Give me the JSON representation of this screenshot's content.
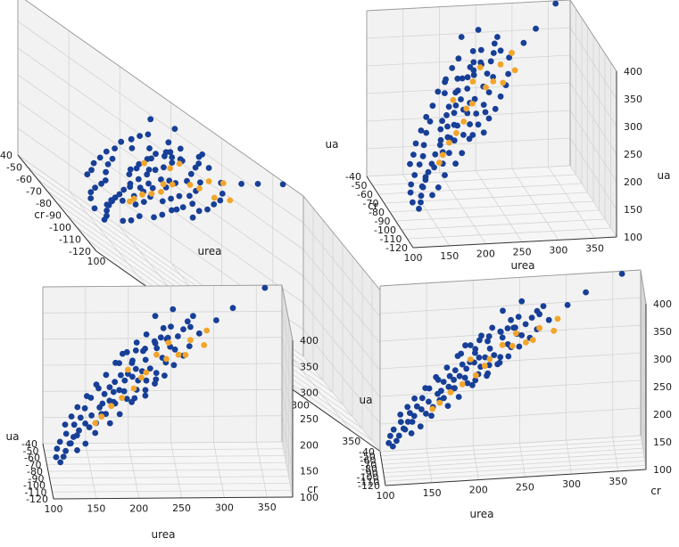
{
  "colors": {
    "series_a": "#173f97",
    "series_b": "#f2a52a",
    "grid": "#d4d4d4",
    "pane_edge": "#9a9a9a",
    "text": "#1a1a1a"
  },
  "chart_data": [
    {
      "type": "scatter",
      "view": "elevation-30-azimuth-30",
      "xlabel": "urea",
      "ylabel": "cr",
      "zlabel": "ua",
      "xlim": [
        100,
        380
      ],
      "ylim": [
        -120,
        -40
      ],
      "zlim": [
        100,
        400
      ],
      "x_ticks": [
        "100",
        "150",
        "200",
        "250",
        "300",
        "350"
      ],
      "y_ticks": [
        "-120",
        "-110",
        "-100",
        "-90",
        "-80",
        "-70",
        "-60",
        "-50",
        "-40"
      ],
      "z_ticks": [
        "100",
        "150",
        "200",
        "250",
        "300",
        "350",
        "400"
      ]
    },
    {
      "type": "scatter",
      "view": "elevation-25-azimuth-10",
      "xlabel": "urea",
      "ylabel": "cr",
      "zlabel": "ua",
      "xlim": [
        100,
        380
      ],
      "ylim": [
        -120,
        -40
      ],
      "zlim": [
        100,
        400
      ],
      "x_ticks": [
        "100",
        "150",
        "200",
        "250",
        "300",
        "350"
      ],
      "y_ticks": [
        "-120",
        "-110",
        "-100",
        "-90",
        "-80",
        "-70",
        "-60",
        "-50",
        "-40"
      ],
      "z_ticks": [
        "100",
        "150",
        "200",
        "250",
        "300",
        "350",
        "400"
      ]
    },
    {
      "type": "scatter",
      "view": "elevation-10-azimuth-15",
      "xlabel": "urea",
      "ylabel": "cr",
      "zlabel": "ua",
      "xlim": [
        100,
        380
      ],
      "ylim": [
        -120,
        -40
      ],
      "zlim": [
        100,
        400
      ],
      "x_ticks": [
        "100",
        "150",
        "200",
        "250",
        "300",
        "350"
      ],
      "y_ticks": [
        "-120",
        "-110",
        "-100",
        "-90",
        "-80",
        "-70",
        "-60",
        "-50",
        "-40"
      ],
      "z_ticks": [
        "100",
        "150",
        "200",
        "250",
        "300",
        "350",
        "400"
      ]
    },
    {
      "type": "scatter",
      "view": "elevation-5-azimuth-5",
      "xlabel": "urea",
      "ylabel": "cr",
      "zlabel": "ua",
      "xlim": [
        100,
        380
      ],
      "ylim": [
        -120,
        -40
      ],
      "zlim": [
        100,
        400
      ],
      "x_ticks": [
        "100",
        "150",
        "200",
        "250",
        "300",
        "350"
      ],
      "y_ticks": [
        "-120",
        "-110",
        "-100",
        "-90",
        "-80",
        "-70",
        "-60",
        "-50",
        "-40"
      ],
      "z_ticks": [
        "100",
        "150",
        "200",
        "250",
        "300",
        "350",
        "400"
      ]
    }
  ],
  "points": {
    "series_a": [
      [
        232,
        -38,
        340
      ],
      [
        252,
        -42,
        358
      ],
      [
        240,
        -48,
        330
      ],
      [
        248,
        -52,
        338
      ],
      [
        270,
        -58,
        345
      ],
      [
        236,
        -54,
        320
      ],
      [
        190,
        -62,
        300
      ],
      [
        205,
        -65,
        310
      ],
      [
        215,
        -70,
        320
      ],
      [
        185,
        -68,
        290
      ],
      [
        200,
        -72,
        300
      ],
      [
        228,
        -64,
        322
      ],
      [
        194,
        -76,
        280
      ],
      [
        210,
        -80,
        290
      ],
      [
        178,
        -80,
        270
      ],
      [
        198,
        -84,
        285
      ],
      [
        165,
        -86,
        255
      ],
      [
        182,
        -88,
        265
      ],
      [
        170,
        -92,
        250
      ],
      [
        158,
        -94,
        240
      ],
      [
        148,
        -98,
        230
      ],
      [
        140,
        -102,
        220
      ],
      [
        132,
        -106,
        212
      ],
      [
        125,
        -110,
        205
      ],
      [
        120,
        -112,
        195
      ],
      [
        115,
        -115,
        185
      ],
      [
        112,
        -118,
        178
      ],
      [
        122,
        -108,
        190
      ],
      [
        130,
        -104,
        200
      ],
      [
        145,
        -100,
        210
      ],
      [
        160,
        -96,
        230
      ],
      [
        175,
        -90,
        245
      ],
      [
        188,
        -86,
        260
      ],
      [
        205,
        -82,
        275
      ],
      [
        220,
        -76,
        290
      ],
      [
        235,
        -72,
        305
      ],
      [
        245,
        -66,
        318
      ],
      [
        255,
        -60,
        330
      ],
      [
        262,
        -56,
        338
      ],
      [
        268,
        -50,
        345
      ],
      [
        275,
        -46,
        350
      ],
      [
        280,
        -60,
        335
      ],
      [
        225,
        -88,
        285
      ],
      [
        212,
        -92,
        270
      ],
      [
        195,
        -98,
        255
      ],
      [
        180,
        -104,
        240
      ],
      [
        168,
        -108,
        228
      ],
      [
        150,
        -112,
        215
      ],
      [
        138,
        -116,
        200
      ],
      [
        128,
        -118,
        190
      ],
      [
        172,
        -80,
        260
      ],
      [
        186,
        -74,
        275
      ],
      [
        200,
        -68,
        290
      ],
      [
        214,
        -62,
        305
      ],
      [
        228,
        -58,
        318
      ],
      [
        242,
        -60,
        325
      ],
      [
        160,
        -74,
        250
      ],
      [
        150,
        -80,
        240
      ],
      [
        142,
        -86,
        228
      ],
      [
        136,
        -92,
        218
      ],
      [
        128,
        -96,
        210
      ],
      [
        118,
        -100,
        198
      ],
      [
        110,
        -104,
        188
      ],
      [
        106,
        -108,
        180
      ],
      [
        104,
        -114,
        172
      ],
      [
        108,
        -120,
        170
      ],
      [
        118,
        -92,
        205
      ],
      [
        126,
        -88,
        215
      ],
      [
        134,
        -82,
        225
      ],
      [
        146,
        -76,
        238
      ],
      [
        158,
        -70,
        252
      ],
      [
        170,
        -66,
        265
      ],
      [
        182,
        -60,
        280
      ],
      [
        196,
        -56,
        295
      ],
      [
        208,
        -52,
        308
      ],
      [
        220,
        -48,
        318
      ],
      [
        198,
        -100,
        265
      ],
      [
        210,
        -104,
        275
      ],
      [
        222,
        -98,
        290
      ],
      [
        234,
        -94,
        300
      ],
      [
        246,
        -88,
        312
      ],
      [
        258,
        -82,
        322
      ],
      [
        266,
        -76,
        332
      ],
      [
        176,
        -96,
        250
      ],
      [
        164,
        -102,
        238
      ],
      [
        152,
        -106,
        226
      ],
      [
        162,
        -90,
        242
      ],
      [
        176,
        -84,
        256
      ],
      [
        190,
        -78,
        270
      ],
      [
        204,
        -72,
        284
      ],
      [
        216,
        -68,
        296
      ],
      [
        230,
        -62,
        310
      ],
      [
        244,
        -56,
        322
      ],
      [
        250,
        -70,
        318
      ],
      [
        238,
        -78,
        304
      ],
      [
        226,
        -84,
        292
      ],
      [
        214,
        -86,
        280
      ],
      [
        202,
        -90,
        268
      ],
      [
        190,
        -94,
        256
      ],
      [
        320,
        -56,
        378
      ],
      [
        360,
        -40,
        395
      ],
      [
        300,
        -60,
        360
      ]
    ],
    "series_b": [
      [
        290,
        -52,
        330
      ],
      [
        270,
        -58,
        320
      ],
      [
        255,
        -64,
        300
      ],
      [
        240,
        -70,
        300
      ],
      [
        262,
        -72,
        310
      ],
      [
        215,
        -78,
        285
      ],
      [
        200,
        -82,
        260
      ],
      [
        185,
        -88,
        250
      ],
      [
        172,
        -92,
        240
      ],
      [
        160,
        -96,
        225
      ],
      [
        230,
        -60,
        295
      ],
      [
        245,
        -54,
        310
      ],
      [
        195,
        -70,
        280
      ],
      [
        152,
        -100,
        218
      ],
      [
        285,
        -64,
        318
      ],
      [
        210,
        -74,
        270
      ]
    ]
  }
}
